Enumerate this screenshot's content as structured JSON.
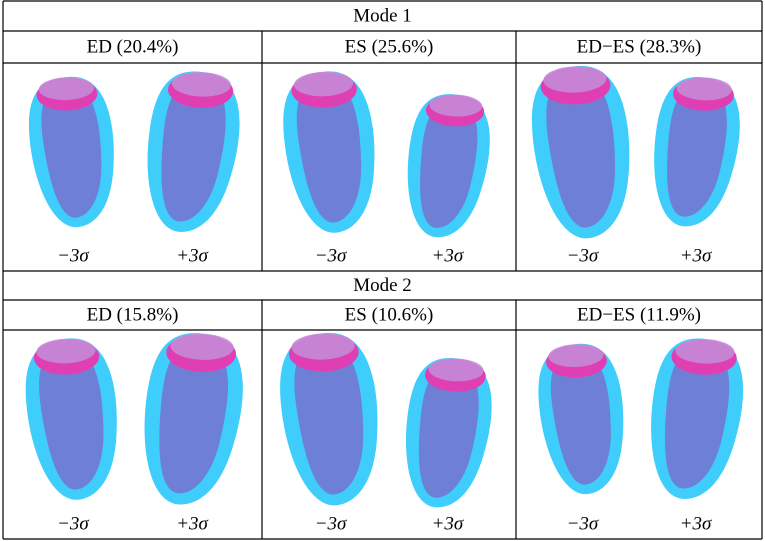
{
  "modes": [
    {
      "title": "Mode 1",
      "columns": [
        {
          "header": "ED (20.4%)",
          "labels": [
            "−3σ",
            "+3σ"
          ]
        },
        {
          "header": "ES (25.6%)",
          "labels": [
            "−3σ",
            "+3σ"
          ]
        },
        {
          "header": "ED−ES (28.3%)",
          "labels": [
            "−3σ",
            "+3σ"
          ]
        }
      ]
    },
    {
      "title": "Mode 2",
      "columns": [
        {
          "header": "ED (15.8%)",
          "labels": [
            "−3σ",
            "+3σ"
          ]
        },
        {
          "header": "ES (10.6%)",
          "labels": [
            "−3σ",
            "+3σ"
          ]
        },
        {
          "header": "ED−ES (11.9%)",
          "labels": [
            "−3σ",
            "+3σ"
          ]
        }
      ]
    }
  ]
}
